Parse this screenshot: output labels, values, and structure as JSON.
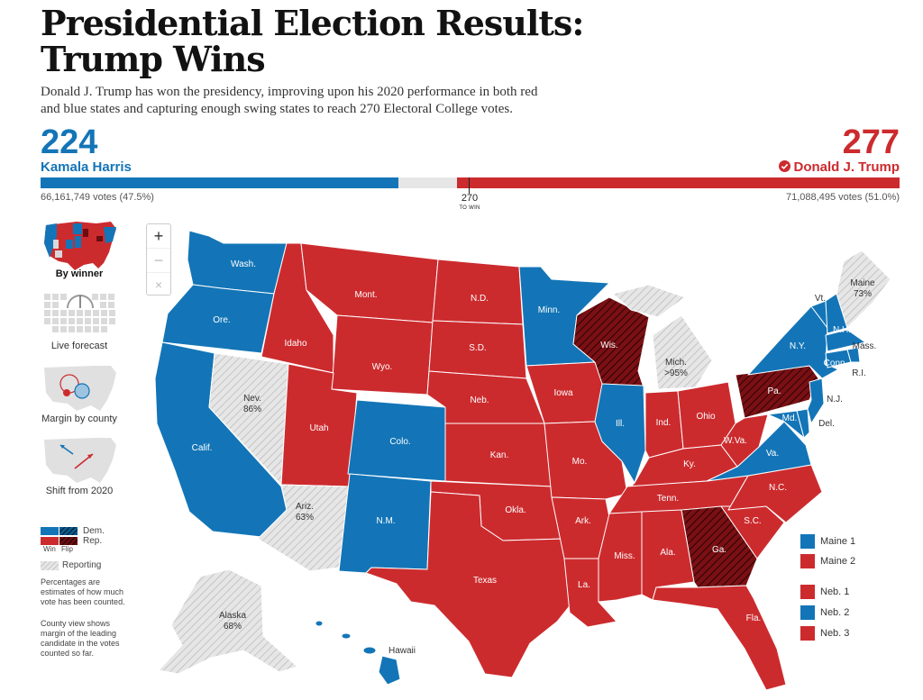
{
  "headline": "Presidential Election Results: Trump Wins",
  "deck": "Donald J. Trump has won the presidency, improving upon his 2020 performance in both red and blue states and capturing enough swing states to reach 270 Electoral College votes.",
  "colors": {
    "dem": "#1375b7",
    "rep": "#cc2b2e",
    "rep_flip": "#6b0d10",
    "reporting": "#d8d8d8"
  },
  "dem": {
    "electoral": "224",
    "name": "Kamala Harris",
    "votes": "66,161,749 votes (47.5%)"
  },
  "rep": {
    "electoral": "277",
    "name": "Donald J. Trump",
    "votes": "71,088,495 votes (51.0%)",
    "winner_icon": "check-circle-icon"
  },
  "electoral_total": 538,
  "threshold": {
    "value": "270",
    "label": "TO WIN"
  },
  "zoom": {
    "in": "+",
    "out": "−",
    "reset": "×"
  },
  "views": [
    {
      "label": "By winner",
      "active": true
    },
    {
      "label": "Live forecast",
      "active": false
    },
    {
      "label": "Margin by county",
      "active": false
    },
    {
      "label": "Shift from 2020",
      "active": false
    }
  ],
  "legend": {
    "dem": "Dem.",
    "rep": "Rep.",
    "win": "Win",
    "flip": "Flip",
    "reporting": "Reporting"
  },
  "notes": [
    "Percentages are estimates of how much vote has been counted.",
    "County view shows margin of the leading candidate in the votes counted so far."
  ],
  "split_districts": [
    {
      "label": "Maine 1",
      "winner": "dem"
    },
    {
      "label": "Maine 2",
      "winner": "rep"
    },
    {
      "label": "Neb. 1",
      "winner": "rep"
    },
    {
      "label": "Neb. 2",
      "winner": "dem"
    },
    {
      "label": "Neb. 3",
      "winner": "rep"
    }
  ],
  "states": {
    "wash": "Wash.",
    "ore": "Ore.",
    "calif": "Calif.",
    "idaho": "Idaho",
    "nev": "Nev.",
    "nev_pct": "86%",
    "mont": "Mont.",
    "wyo": "Wyo.",
    "utah": "Utah",
    "ariz": "Ariz.",
    "ariz_pct": "63%",
    "colo": "Colo.",
    "nm": "N.M.",
    "nd": "N.D.",
    "sd": "S.D.",
    "neb": "Neb.",
    "kan": "Kan.",
    "okla": "Okla.",
    "texas": "Texas",
    "minn": "Minn.",
    "iowa": "Iowa",
    "mo": "Mo.",
    "ark": "Ark.",
    "la": "La.",
    "wis": "Wis.",
    "ill": "Ill.",
    "mich": "Mich.",
    "mich_pct": ">95%",
    "ind": "Ind.",
    "ohio": "Ohio",
    "ky": "Ky.",
    "tenn": "Tenn.",
    "miss": "Miss.",
    "ala": "Ala.",
    "ga": "Ga.",
    "fla": "Fla.",
    "sc": "S.C.",
    "nc": "N.C.",
    "va": "Va.",
    "wva": "W.Va.",
    "pa": "Pa.",
    "ny": "N.Y.",
    "vt": "Vt.",
    "nh": "N.H.",
    "maine": "Maine",
    "maine_pct": "73%",
    "mass": "Mass.",
    "ri": "R.I.",
    "conn": "Conn.",
    "nj": "N.J.",
    "del": "Del.",
    "md": "Md.",
    "alaska": "Alaska",
    "alaska_pct": "68%",
    "hawaii": "Hawaii"
  }
}
